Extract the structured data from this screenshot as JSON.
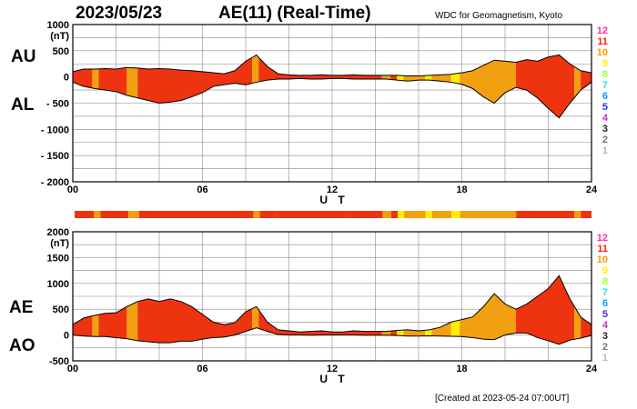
{
  "header": {
    "date": "2023/05/23",
    "title": "AE(11) (Real-Time)",
    "source": "WDC for Geomagnetism, Kyoto",
    "created": "[Created at 2023-05-24 07:00UT]"
  },
  "legend": {
    "levels": [
      "12",
      "11",
      "10",
      "9",
      "8",
      "7",
      "6",
      "5",
      "4",
      "3",
      "2",
      "1"
    ],
    "colors": [
      "#ff3399",
      "#ff2200",
      "#ff9900",
      "#ffee00",
      "#99ff33",
      "#33dddd",
      "#0099ff",
      "#3333cc",
      "#cc33cc",
      "#222222",
      "#777777",
      "#bbbbbb"
    ]
  },
  "colors": {
    "grid": "#888888",
    "red": "#ee3311",
    "orange": "#f0a010",
    "yellow": "#ffee00"
  },
  "chart_data": [
    {
      "type": "area",
      "name": "AU/AL",
      "labels": {
        "upper": "AU",
        "lower": "AL"
      },
      "ylabel": "(nT)",
      "xlabel": "U T",
      "xticks": [
        "00",
        "06",
        "12",
        "18",
        "24"
      ],
      "yticks": [
        "1000",
        "500",
        "0",
        "- 500",
        "- 1000",
        "- 1500",
        "- 2000"
      ],
      "ylim": [
        -2000,
        1000
      ],
      "xlim": [
        0,
        24
      ],
      "x": [
        0,
        0.5,
        1,
        1.5,
        2,
        2.5,
        3,
        3.5,
        4,
        4.5,
        5,
        5.5,
        6,
        6.5,
        7,
        7.5,
        8,
        8.5,
        9,
        9.5,
        10,
        10.5,
        11,
        11.5,
        12,
        12.5,
        13,
        13.5,
        14,
        14.5,
        15,
        15.5,
        16,
        16.5,
        17,
        17.5,
        18,
        18.5,
        19,
        19.5,
        20,
        20.5,
        21,
        21.5,
        22,
        22.5,
        23,
        23.5,
        24
      ],
      "series": [
        {
          "name": "AU",
          "values": [
            100,
            150,
            150,
            160,
            150,
            180,
            170,
            150,
            160,
            150,
            130,
            120,
            100,
            80,
            60,
            120,
            300,
            420,
            200,
            60,
            40,
            30,
            30,
            40,
            30,
            30,
            40,
            30,
            30,
            30,
            30,
            20,
            20,
            30,
            40,
            50,
            80,
            120,
            220,
            320,
            300,
            280,
            330,
            300,
            380,
            420,
            250,
            120,
            80
          ]
        },
        {
          "name": "AL",
          "values": [
            -100,
            -180,
            -220,
            -250,
            -280,
            -350,
            -400,
            -450,
            -500,
            -480,
            -450,
            -380,
            -300,
            -180,
            -150,
            -120,
            -150,
            -100,
            -60,
            -40,
            -40,
            -30,
            -40,
            -40,
            -30,
            -30,
            -40,
            -40,
            -40,
            -40,
            -60,
            -80,
            -60,
            -60,
            -80,
            -100,
            -140,
            -220,
            -380,
            -500,
            -300,
            -200,
            -250,
            -400,
            -600,
            -780,
            -500,
            -250,
            -100
          ]
        }
      ]
    },
    {
      "type": "area",
      "name": "AE/AO",
      "labels": {
        "upper": "AE",
        "lower": "AO"
      },
      "ylabel": "(nT)",
      "xlabel": "U T",
      "xticks": [
        "00",
        "06",
        "12",
        "18",
        "24"
      ],
      "yticks": [
        "2000",
        "1500",
        "1000",
        "500",
        "0",
        "-500"
      ],
      "ylim": [
        -500,
        2000
      ],
      "xlim": [
        0,
        24
      ],
      "x": [
        0,
        0.5,
        1,
        1.5,
        2,
        2.5,
        3,
        3.5,
        4,
        4.5,
        5,
        5.5,
        6,
        6.5,
        7,
        7.5,
        8,
        8.5,
        9,
        9.5,
        10,
        10.5,
        11,
        11.5,
        12,
        12.5,
        13,
        13.5,
        14,
        14.5,
        15,
        15.5,
        16,
        16.5,
        17,
        17.5,
        18,
        18.5,
        19,
        19.5,
        20,
        20.5,
        21,
        21.5,
        22,
        22.5,
        23,
        23.5,
        24
      ],
      "series": [
        {
          "name": "AE",
          "values": [
            200,
            330,
            380,
            420,
            430,
            550,
            650,
            700,
            650,
            700,
            650,
            550,
            400,
            250,
            200,
            240,
            450,
            550,
            250,
            100,
            80,
            60,
            70,
            80,
            60,
            60,
            80,
            70,
            70,
            70,
            90,
            100,
            80,
            100,
            150,
            250,
            300,
            350,
            550,
            800,
            600,
            500,
            600,
            750,
            900,
            1150,
            700,
            350,
            200
          ]
        },
        {
          "name": "AO",
          "values": [
            0,
            -20,
            -30,
            -30,
            -50,
            -70,
            -110,
            -130,
            -150,
            -150,
            -120,
            -120,
            -80,
            -50,
            -40,
            0,
            70,
            140,
            70,
            10,
            0,
            0,
            -5,
            0,
            0,
            0,
            0,
            -5,
            -5,
            -5,
            -10,
            -20,
            -20,
            -15,
            -20,
            -25,
            -30,
            -50,
            -80,
            -90,
            0,
            40,
            40,
            -50,
            -110,
            -180,
            -100,
            -60,
            -10
          ]
        }
      ]
    }
  ],
  "activity_bar": {
    "segments": [
      {
        "from": 0,
        "to": 0.9,
        "color": "red"
      },
      {
        "from": 0.9,
        "to": 1.2,
        "color": "orange"
      },
      {
        "from": 1.2,
        "to": 2.5,
        "color": "red"
      },
      {
        "from": 2.5,
        "to": 3.0,
        "color": "orange"
      },
      {
        "from": 3.0,
        "to": 8.3,
        "color": "red"
      },
      {
        "from": 8.3,
        "to": 8.6,
        "color": "orange"
      },
      {
        "from": 8.6,
        "to": 9.3,
        "color": "red"
      },
      {
        "from": 9.3,
        "to": 12.8,
        "color": "red"
      },
      {
        "from": 12.8,
        "to": 14.3,
        "color": "red"
      },
      {
        "from": 14.3,
        "to": 14.7,
        "color": "orange"
      },
      {
        "from": 14.7,
        "to": 15.0,
        "color": "red"
      },
      {
        "from": 15.0,
        "to": 15.3,
        "color": "yellow"
      },
      {
        "from": 15.3,
        "to": 16.3,
        "color": "orange"
      },
      {
        "from": 16.3,
        "to": 16.6,
        "color": "yellow"
      },
      {
        "from": 16.6,
        "to": 17.5,
        "color": "orange"
      },
      {
        "from": 17.5,
        "to": 17.9,
        "color": "yellow"
      },
      {
        "from": 17.9,
        "to": 20.5,
        "color": "orange"
      },
      {
        "from": 20.5,
        "to": 23.2,
        "color": "red"
      },
      {
        "from": 23.2,
        "to": 23.5,
        "color": "orange"
      },
      {
        "from": 23.5,
        "to": 24,
        "color": "red"
      }
    ]
  }
}
